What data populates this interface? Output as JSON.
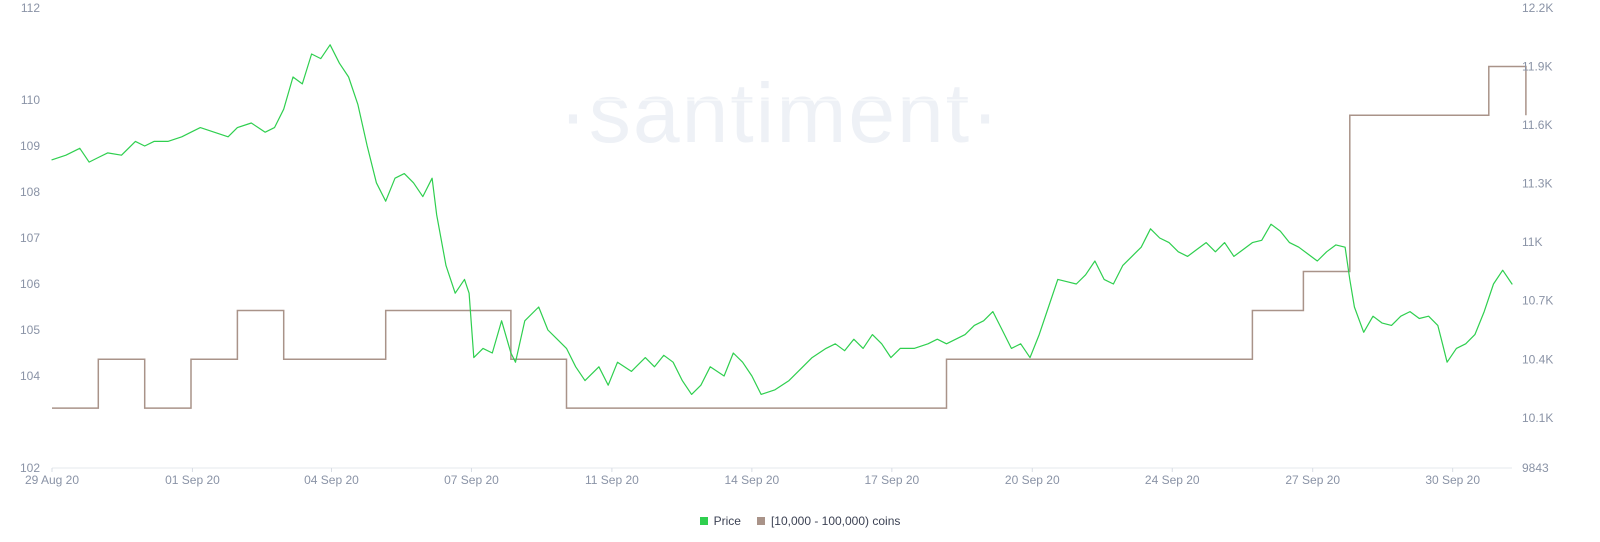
{
  "watermark": "·santiment·",
  "chart_data": {
    "type": "line",
    "x_axis": {
      "ticks": [
        "29 Aug 20",
        "01 Sep 20",
        "04 Sep 20",
        "07 Sep 20",
        "11 Sep 20",
        "14 Sep 20",
        "17 Sep 20",
        "20 Sep 20",
        "24 Sep 20",
        "27 Sep 20",
        "30 Sep 20"
      ],
      "range_days": [
        0,
        31.5
      ]
    },
    "y_left": {
      "ticks": [
        "102",
        "104",
        "105",
        "106",
        "107",
        "108",
        "109",
        "110",
        "112"
      ],
      "tick_values": [
        102,
        104,
        105,
        106,
        107,
        108,
        109,
        110,
        112
      ],
      "range": [
        102,
        112
      ]
    },
    "y_right": {
      "ticks": [
        "9843",
        "10.1K",
        "10.4K",
        "10.7K",
        "11K",
        "11.3K",
        "11.6K",
        "11.9K",
        "12.2K"
      ],
      "tick_values": [
        9843,
        10100,
        10400,
        10700,
        11000,
        11300,
        11600,
        11900,
        12200
      ],
      "range": [
        9843,
        12200
      ]
    },
    "legend": {
      "position": "bottom-center",
      "items": [
        {
          "label": "Price",
          "color": "#2fcf4f"
        },
        {
          "label": "[10,000 - 100,000) coins",
          "color": "#a99389"
        }
      ]
    },
    "series": [
      {
        "name": "Price",
        "axis": "left",
        "color": "#2fcf4f",
        "points": [
          [
            0.0,
            108.7
          ],
          [
            0.3,
            108.8
          ],
          [
            0.6,
            108.95
          ],
          [
            0.8,
            108.65
          ],
          [
            1.0,
            108.75
          ],
          [
            1.2,
            108.85
          ],
          [
            1.5,
            108.8
          ],
          [
            1.8,
            109.1
          ],
          [
            2.0,
            109.0
          ],
          [
            2.2,
            109.1
          ],
          [
            2.5,
            109.1
          ],
          [
            2.8,
            109.2
          ],
          [
            3.0,
            109.3
          ],
          [
            3.2,
            109.4
          ],
          [
            3.5,
            109.3
          ],
          [
            3.8,
            109.2
          ],
          [
            4.0,
            109.4
          ],
          [
            4.3,
            109.5
          ],
          [
            4.6,
            109.3
          ],
          [
            4.8,
            109.4
          ],
          [
            5.0,
            109.8
          ],
          [
            5.2,
            110.5
          ],
          [
            5.4,
            110.35
          ],
          [
            5.6,
            111.0
          ],
          [
            5.8,
            110.9
          ],
          [
            6.0,
            111.2
          ],
          [
            6.2,
            110.8
          ],
          [
            6.4,
            110.5
          ],
          [
            6.6,
            109.9
          ],
          [
            6.8,
            109.0
          ],
          [
            7.0,
            108.2
          ],
          [
            7.2,
            107.8
          ],
          [
            7.4,
            108.3
          ],
          [
            7.6,
            108.4
          ],
          [
            7.8,
            108.2
          ],
          [
            8.0,
            107.9
          ],
          [
            8.2,
            108.3
          ],
          [
            8.3,
            107.5
          ],
          [
            8.5,
            106.4
          ],
          [
            8.7,
            105.8
          ],
          [
            8.9,
            106.1
          ],
          [
            9.0,
            105.8
          ],
          [
            9.1,
            104.4
          ],
          [
            9.3,
            104.6
          ],
          [
            9.5,
            104.5
          ],
          [
            9.7,
            105.2
          ],
          [
            9.9,
            104.5
          ],
          [
            10.0,
            104.3
          ],
          [
            10.2,
            105.2
          ],
          [
            10.5,
            105.5
          ],
          [
            10.7,
            105.0
          ],
          [
            10.9,
            104.8
          ],
          [
            11.1,
            104.6
          ],
          [
            11.3,
            104.2
          ],
          [
            11.5,
            103.9
          ],
          [
            11.8,
            104.2
          ],
          [
            12.0,
            103.8
          ],
          [
            12.2,
            104.3
          ],
          [
            12.5,
            104.1
          ],
          [
            12.8,
            104.4
          ],
          [
            13.0,
            104.2
          ],
          [
            13.2,
            104.45
          ],
          [
            13.4,
            104.3
          ],
          [
            13.6,
            103.9
          ],
          [
            13.8,
            103.6
          ],
          [
            14.0,
            103.8
          ],
          [
            14.2,
            104.2
          ],
          [
            14.5,
            104.0
          ],
          [
            14.7,
            104.5
          ],
          [
            14.9,
            104.3
          ],
          [
            15.1,
            104.0
          ],
          [
            15.3,
            103.6
          ],
          [
            15.6,
            103.7
          ],
          [
            15.9,
            103.9
          ],
          [
            16.1,
            104.1
          ],
          [
            16.4,
            104.4
          ],
          [
            16.7,
            104.6
          ],
          [
            16.9,
            104.7
          ],
          [
            17.1,
            104.55
          ],
          [
            17.3,
            104.8
          ],
          [
            17.5,
            104.6
          ],
          [
            17.7,
            104.9
          ],
          [
            17.9,
            104.7
          ],
          [
            18.1,
            104.4
          ],
          [
            18.3,
            104.6
          ],
          [
            18.6,
            104.6
          ],
          [
            18.9,
            104.7
          ],
          [
            19.1,
            104.8
          ],
          [
            19.3,
            104.7
          ],
          [
            19.5,
            104.8
          ],
          [
            19.7,
            104.9
          ],
          [
            19.9,
            105.1
          ],
          [
            20.1,
            105.2
          ],
          [
            20.3,
            105.4
          ],
          [
            20.5,
            105.0
          ],
          [
            20.7,
            104.6
          ],
          [
            20.9,
            104.7
          ],
          [
            21.1,
            104.4
          ],
          [
            21.3,
            104.9
          ],
          [
            21.5,
            105.5
          ],
          [
            21.7,
            106.1
          ],
          [
            21.9,
            106.05
          ],
          [
            22.1,
            106.0
          ],
          [
            22.3,
            106.2
          ],
          [
            22.5,
            106.5
          ],
          [
            22.7,
            106.1
          ],
          [
            22.9,
            106.0
          ],
          [
            23.1,
            106.4
          ],
          [
            23.3,
            106.6
          ],
          [
            23.5,
            106.8
          ],
          [
            23.7,
            107.2
          ],
          [
            23.9,
            107.0
          ],
          [
            24.1,
            106.9
          ],
          [
            24.3,
            106.7
          ],
          [
            24.5,
            106.6
          ],
          [
            24.7,
            106.75
          ],
          [
            24.9,
            106.9
          ],
          [
            25.1,
            106.7
          ],
          [
            25.3,
            106.9
          ],
          [
            25.5,
            106.6
          ],
          [
            25.7,
            106.75
          ],
          [
            25.9,
            106.9
          ],
          [
            26.1,
            106.95
          ],
          [
            26.3,
            107.3
          ],
          [
            26.5,
            107.15
          ],
          [
            26.7,
            106.9
          ],
          [
            26.9,
            106.8
          ],
          [
            27.1,
            106.65
          ],
          [
            27.3,
            106.5
          ],
          [
            27.5,
            106.7
          ],
          [
            27.7,
            106.85
          ],
          [
            27.9,
            106.8
          ],
          [
            28.0,
            106.1
          ],
          [
            28.1,
            105.5
          ],
          [
            28.3,
            104.95
          ],
          [
            28.5,
            105.3
          ],
          [
            28.7,
            105.15
          ],
          [
            28.9,
            105.1
          ],
          [
            29.1,
            105.3
          ],
          [
            29.3,
            105.4
          ],
          [
            29.5,
            105.25
          ],
          [
            29.7,
            105.3
          ],
          [
            29.9,
            105.1
          ],
          [
            30.0,
            104.7
          ],
          [
            30.1,
            104.3
          ],
          [
            30.3,
            104.6
          ],
          [
            30.5,
            104.7
          ],
          [
            30.7,
            104.9
          ],
          [
            30.9,
            105.4
          ],
          [
            31.1,
            106.0
          ],
          [
            31.3,
            106.3
          ],
          [
            31.5,
            106.0
          ]
        ]
      },
      {
        "name": "[10,000 - 100,000) coins",
        "axis": "right",
        "color": "#a99389",
        "points": []
      }
    ]
  }
}
